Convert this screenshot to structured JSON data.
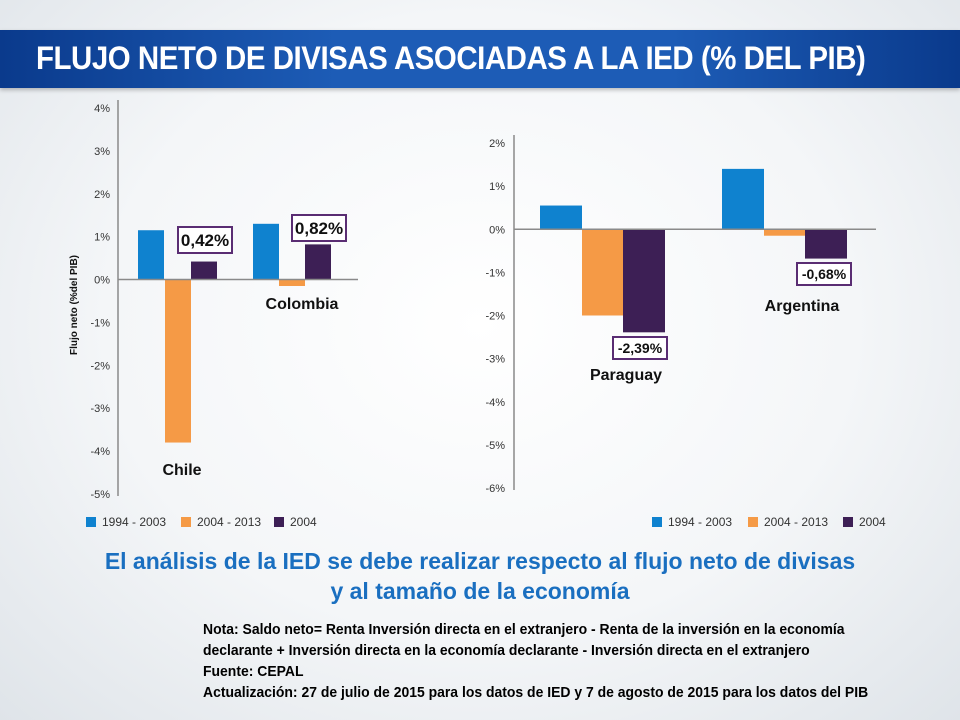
{
  "title": "FLUJO NETO DE DIVISAS ASOCIADAS A LA IED (% DEL PIB)",
  "message": {
    "line1": "El análisis de la IED se debe realizar respecto al flujo neto de divisas",
    "line2": "y al tamaño de la economía"
  },
  "notes": [
    "Nota: Saldo neto= Renta Inversión directa en el extranjero - Renta de la inversión en la economía",
    "declarante + Inversión directa en la economía declarante - Inversión directa en el extranjero",
    "Fuente: CEPAL",
    "Actualización: 27 de julio de 2015 para los datos de IED y 7 de agosto de 2015 para los datos del PIB"
  ],
  "colors": {
    "series": [
      "#0f82cf",
      "#f59a46",
      "#3d1f55"
    ],
    "header": "#1d5cb6",
    "message": "#1a6fc0"
  },
  "chart_data": [
    {
      "type": "bar",
      "ylabel": "Flujo neto (%del PIB)",
      "ylim": [
        -5,
        4
      ],
      "yticks": [
        4,
        3,
        2,
        1,
        0,
        -1,
        -2,
        -3,
        -4,
        -5
      ],
      "ytick_labels": [
        "4%",
        "3%",
        "2%",
        "1%",
        "0%",
        "-1%",
        "-2%",
        "-3%",
        "-4%",
        "-5%"
      ],
      "categories": [
        "Chile",
        "Colombia"
      ],
      "series": [
        {
          "name": "1994 - 2003",
          "values": [
            1.15,
            1.3
          ]
        },
        {
          "name": "2004 - 2013",
          "values": [
            -3.8,
            -0.15
          ]
        },
        {
          "name": "2004",
          "values": [
            0.42,
            0.82
          ]
        }
      ],
      "annotations": [
        "0,42%",
        "0,82%"
      ],
      "legend": "bottom"
    },
    {
      "type": "bar",
      "ylabel": "",
      "ylim": [
        -6,
        2
      ],
      "yticks": [
        2,
        1,
        0,
        -1,
        -2,
        -3,
        -4,
        -5,
        -6
      ],
      "ytick_labels": [
        "2%",
        "1%",
        "0%",
        "-1%",
        "-2%",
        "-3%",
        "-4%",
        "-5%",
        "-6%"
      ],
      "categories": [
        "Paraguay",
        "Argentina"
      ],
      "series": [
        {
          "name": "1994 - 2003",
          "values": [
            0.55,
            1.4
          ]
        },
        {
          "name": "2004 - 2013",
          "values": [
            -2.0,
            -0.15
          ]
        },
        {
          "name": "2004",
          "values": [
            -2.39,
            -0.68
          ]
        }
      ],
      "annotations": [
        "-2,39%",
        "-0,68%"
      ],
      "legend": "bottom"
    }
  ]
}
